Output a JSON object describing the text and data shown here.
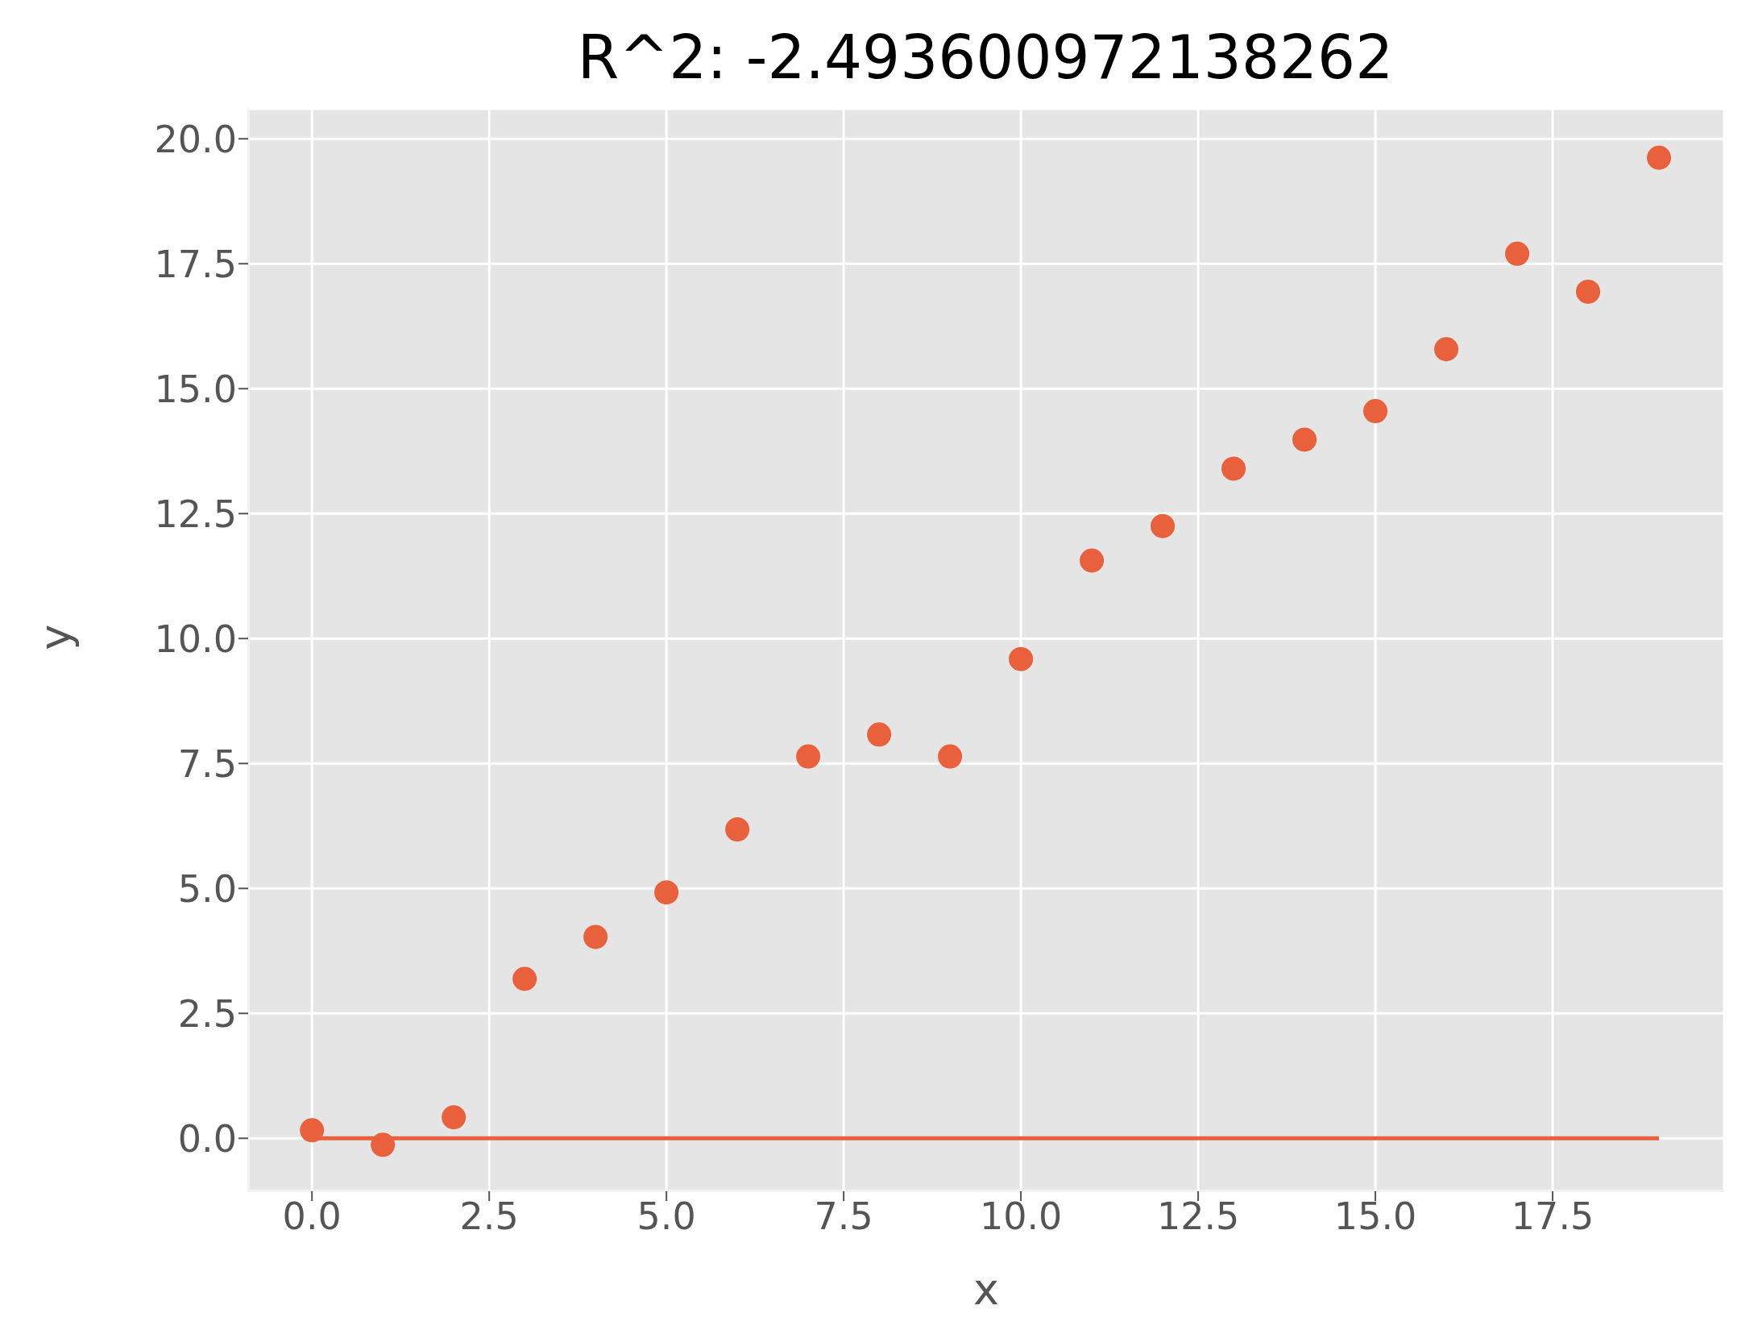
{
  "chart_data": {
    "type": "scatter",
    "title": "R^2: -2.493600972138262",
    "xlabel": "x",
    "ylabel": "y",
    "series": [
      {
        "color": "#e8603c",
        "x": [
          0,
          1,
          2,
          3,
          4,
          5,
          6,
          7,
          8,
          9,
          10,
          11,
          12,
          13,
          14,
          15,
          16,
          17,
          18,
          19
        ],
        "values": [
          0.16,
          -0.13,
          0.42,
          3.19,
          4.03,
          4.92,
          6.18,
          7.64,
          8.08,
          7.64,
          9.59,
          11.56,
          12.25,
          13.4,
          13.98,
          14.55,
          15.79,
          17.7,
          16.94,
          19.62
        ]
      },
      {
        "type": "line",
        "color": "#e8603c",
        "x": [
          0,
          19
        ],
        "values": [
          0,
          0
        ]
      }
    ],
    "xlim": [
      -0.9,
      19.92
    ],
    "ylim": [
      -1.06,
      20.6
    ],
    "xticks": [
      {
        "value": 0,
        "label": "0.0"
      },
      {
        "value": 2.5,
        "label": "2.5"
      },
      {
        "value": 5,
        "label": "5.0"
      },
      {
        "value": 7.5,
        "label": "7.5"
      },
      {
        "value": 10,
        "label": "10.0"
      },
      {
        "value": 12.5,
        "label": "12.5"
      },
      {
        "value": 15,
        "label": "15.0"
      },
      {
        "value": 17.5,
        "label": "17.5"
      }
    ],
    "yticks": [
      {
        "value": 0,
        "label": "0.0"
      },
      {
        "value": 2.5,
        "label": "2.5"
      },
      {
        "value": 5,
        "label": "5.0"
      },
      {
        "value": 7.5,
        "label": "7.5"
      },
      {
        "value": 10,
        "label": "10.0"
      },
      {
        "value": 12.5,
        "label": "12.5"
      },
      {
        "value": 15,
        "label": "15.0"
      },
      {
        "value": 17.5,
        "label": "17.5"
      },
      {
        "value": 20,
        "label": "20.0"
      }
    ],
    "grid": true
  }
}
